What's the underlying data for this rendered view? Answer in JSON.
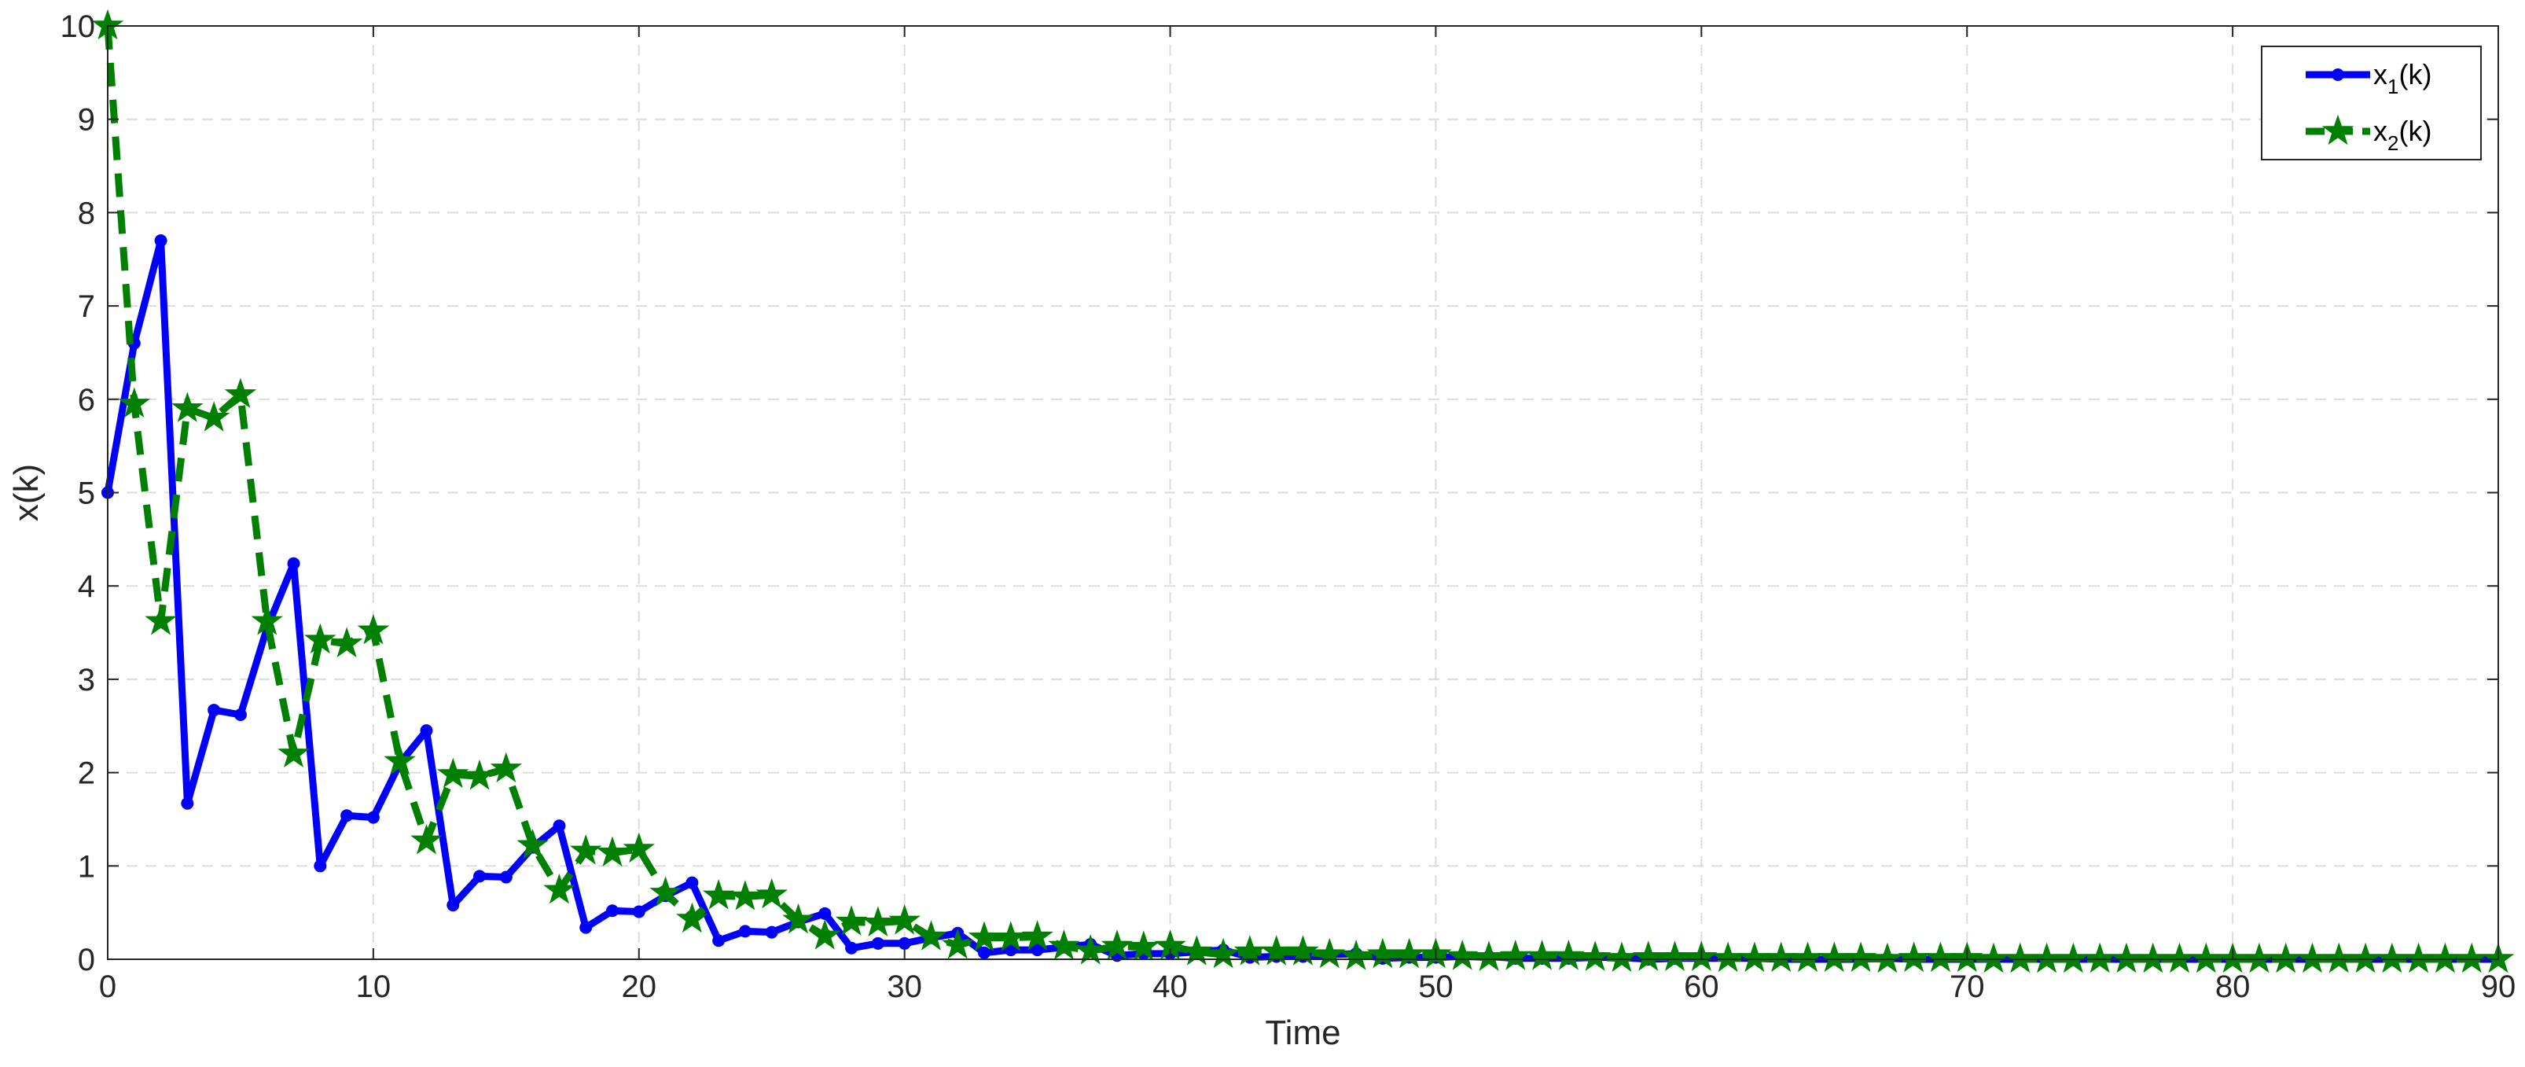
{
  "chart_data": {
    "type": "line",
    "xlabel": "Time",
    "ylabel": "x(k)",
    "xlim": [
      0,
      90
    ],
    "ylim": [
      0,
      10
    ],
    "xticks": [
      0,
      10,
      20,
      30,
      40,
      50,
      60,
      70,
      80,
      90
    ],
    "yticks": [
      0,
      1,
      2,
      3,
      4,
      5,
      6,
      7,
      8,
      9,
      10
    ],
    "grid": true,
    "legend_position": "top-right",
    "x": [
      0,
      1,
      2,
      3,
      4,
      5,
      6,
      7,
      8,
      9,
      10,
      11,
      12,
      13,
      14,
      15,
      16,
      17,
      18,
      19,
      20,
      21,
      22,
      23,
      24,
      25,
      26,
      27,
      28,
      29,
      30,
      31,
      32,
      33,
      34,
      35,
      36,
      37,
      38,
      39,
      40,
      41,
      42,
      43,
      44,
      45,
      46,
      47,
      48,
      49,
      50,
      51,
      52,
      53,
      54,
      55,
      56,
      57,
      58,
      59,
      60,
      61,
      62,
      63,
      64,
      65,
      66,
      67,
      68,
      69,
      70,
      71,
      72,
      73,
      74,
      75,
      76,
      77,
      78,
      79,
      80,
      81,
      82,
      83,
      84,
      85,
      86,
      87,
      88,
      89,
      90
    ],
    "series": [
      {
        "label_main": "x",
        "label_sub": "1",
        "label_tail": "(k)",
        "color": "#0000ff",
        "line_style": "solid",
        "marker": "circle",
        "values": [
          5.0,
          6.6,
          7.7,
          1.67,
          2.67,
          2.62,
          3.55,
          4.24,
          1.0,
          1.54,
          1.52,
          2.1,
          2.45,
          0.58,
          0.89,
          0.88,
          1.2,
          1.43,
          0.34,
          0.52,
          0.51,
          0.68,
          0.82,
          0.2,
          0.3,
          0.29,
          0.4,
          0.49,
          0.12,
          0.17,
          0.17,
          0.23,
          0.28,
          0.07,
          0.1,
          0.1,
          0.13,
          0.16,
          0.04,
          0.06,
          0.06,
          0.08,
          0.1,
          0.02,
          0.03,
          0.03,
          0.05,
          0.06,
          0.01,
          0.02,
          0.02,
          0.03,
          0.03,
          0.01,
          0.01,
          0.01,
          0.02,
          0.02,
          0.0,
          0.01,
          0.01,
          0.01,
          0.01,
          0.0,
          0.0,
          0.0,
          0.0,
          0.01,
          0.0,
          0.0,
          0.0,
          0.0,
          0.0,
          0.0,
          0.0,
          0.0,
          0.0,
          0.0,
          0.0,
          0.0,
          0.0,
          0.0,
          0.0,
          0.0,
          0.0,
          0.0,
          0.0,
          0.0,
          0.0,
          0.0,
          0.0
        ]
      },
      {
        "label_main": "x",
        "label_sub": "2",
        "label_tail": "(k)",
        "color": "#008000",
        "line_style": "dashed",
        "marker": "star",
        "values": [
          10.0,
          5.95,
          3.62,
          5.9,
          5.8,
          6.05,
          3.62,
          2.2,
          3.42,
          3.38,
          3.52,
          2.12,
          1.27,
          1.98,
          1.96,
          2.04,
          1.22,
          0.74,
          1.16,
          1.14,
          1.18,
          0.71,
          0.43,
          0.68,
          0.67,
          0.69,
          0.42,
          0.25,
          0.4,
          0.39,
          0.41,
          0.24,
          0.15,
          0.23,
          0.23,
          0.24,
          0.14,
          0.09,
          0.14,
          0.13,
          0.14,
          0.08,
          0.05,
          0.08,
          0.08,
          0.08,
          0.05,
          0.03,
          0.05,
          0.05,
          0.05,
          0.03,
          0.02,
          0.03,
          0.03,
          0.03,
          0.02,
          0.01,
          0.02,
          0.02,
          0.02,
          0.01,
          0.01,
          0.01,
          0.01,
          0.01,
          0.01,
          0.0,
          0.01,
          0.01,
          0.01,
          0.0,
          0.0,
          0.0,
          0.0,
          0.0,
          0.0,
          0.0,
          0.0,
          0.0,
          0.0,
          0.0,
          0.0,
          0.0,
          0.0,
          0.0,
          0.0,
          0.0,
          0.0,
          0.0,
          0.0
        ]
      }
    ]
  }
}
